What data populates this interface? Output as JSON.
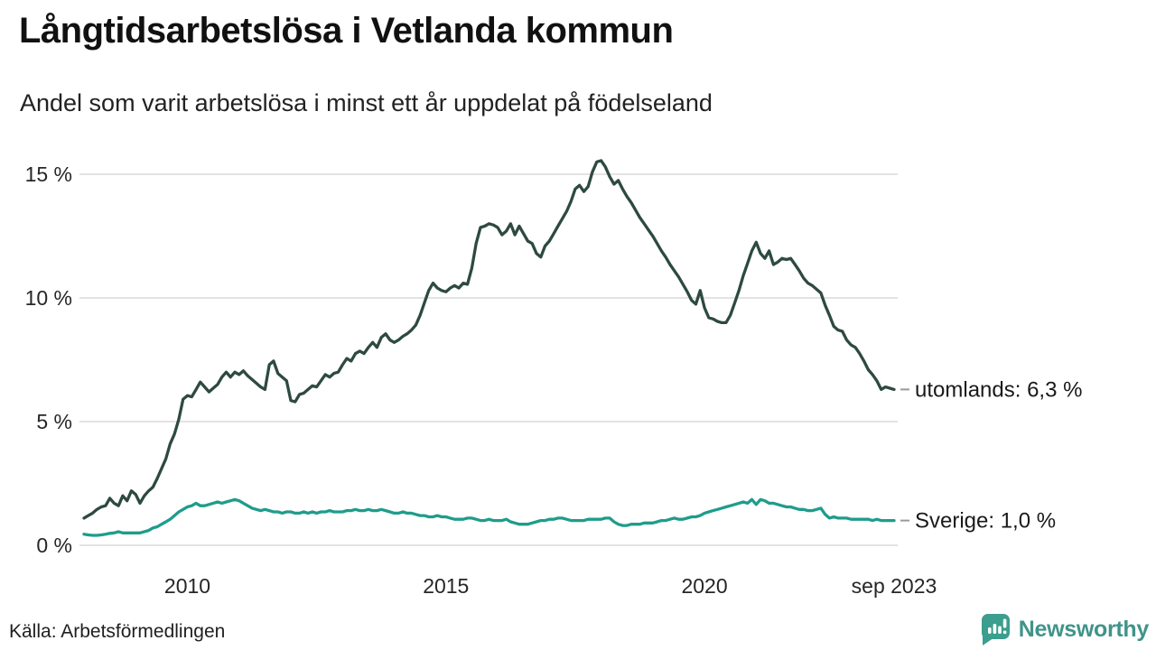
{
  "header": {
    "title": "Långtidsarbetslösa i Vetlanda kommun",
    "subtitle": "Andel som varit arbetslösa i minst ett år uppdelat på födelseland"
  },
  "footer": {
    "source": "Källa: Arbetsförmedlingen",
    "brand": "Newsworthy"
  },
  "colors": {
    "background": "#ffffff",
    "title_text": "#111111",
    "axis_text": "#262626",
    "gridline": "#e3e3e3",
    "end_label_text": "#1a1a1a",
    "end_tick": "#999999",
    "utomlands_line": "#2e4a40",
    "sverige_line": "#1f9c8c",
    "brand_teal": "#3b9e8e"
  },
  "chart_data": {
    "type": "line",
    "title": "Långtidsarbetslösa i Vetlanda kommun",
    "subtitle": "Andel som varit arbetslösa i minst ett år uppdelat på födelseland",
    "frequency": "monthly",
    "x_start": "2008-01",
    "x_end": "2023-09",
    "ylim": [
      0,
      15.5
    ],
    "grid": "horizontal",
    "legend_position": "right-end-labels",
    "y_ticks": [
      {
        "label": "0 %",
        "value": 0
      },
      {
        "label": "5 %",
        "value": 5
      },
      {
        "label": "10 %",
        "value": 10
      },
      {
        "label": "15 %",
        "value": 15
      }
    ],
    "x_ticks": [
      {
        "label": "2010",
        "month_index": 24
      },
      {
        "label": "2015",
        "month_index": 84
      },
      {
        "label": "2020",
        "month_index": 144
      },
      {
        "label": "sep 2023",
        "month_index": 188
      }
    ],
    "series": [
      {
        "name": "utomlands",
        "end_label": "utomlands: 6,3 %",
        "last_value": 6.3,
        "color": "#2e4a40",
        "values": [
          1.1,
          1.2,
          1.3,
          1.45,
          1.55,
          1.6,
          1.9,
          1.7,
          1.6,
          2.0,
          1.8,
          2.2,
          2.05,
          1.7,
          2.0,
          2.2,
          2.35,
          2.7,
          3.1,
          3.5,
          4.1,
          4.5,
          5.1,
          5.9,
          6.05,
          6.0,
          6.3,
          6.6,
          6.4,
          6.2,
          6.35,
          6.5,
          6.8,
          7.0,
          6.8,
          7.0,
          6.9,
          7.05,
          6.85,
          6.7,
          6.55,
          6.4,
          6.3,
          7.3,
          7.45,
          6.95,
          6.8,
          6.65,
          5.85,
          5.8,
          6.1,
          6.15,
          6.3,
          6.45,
          6.4,
          6.65,
          6.9,
          6.8,
          6.95,
          7.0,
          7.3,
          7.55,
          7.45,
          7.75,
          7.85,
          7.75,
          8.0,
          8.2,
          8.0,
          8.4,
          8.55,
          8.3,
          8.2,
          8.3,
          8.45,
          8.55,
          8.7,
          8.9,
          9.3,
          9.8,
          10.3,
          10.6,
          10.4,
          10.3,
          10.25,
          10.4,
          10.5,
          10.4,
          10.6,
          10.55,
          11.2,
          12.2,
          12.85,
          12.9,
          13.0,
          12.95,
          12.85,
          12.55,
          12.7,
          13.0,
          12.55,
          12.9,
          12.6,
          12.3,
          12.2,
          11.8,
          11.65,
          12.1,
          12.3,
          12.6,
          12.9,
          13.2,
          13.5,
          13.9,
          14.4,
          14.55,
          14.3,
          14.5,
          15.1,
          15.5,
          15.55,
          15.3,
          14.9,
          14.6,
          14.75,
          14.4,
          14.1,
          13.85,
          13.55,
          13.25,
          13.0,
          12.75,
          12.5,
          12.2,
          11.9,
          11.65,
          11.35,
          11.1,
          10.85,
          10.55,
          10.25,
          9.9,
          9.75,
          10.3,
          9.6,
          9.2,
          9.15,
          9.05,
          9.0,
          9.0,
          9.3,
          9.8,
          10.3,
          10.9,
          11.4,
          11.9,
          12.25,
          11.8,
          11.6,
          11.9,
          11.35,
          11.45,
          11.6,
          11.55,
          11.6,
          11.35,
          11.1,
          10.8,
          10.6,
          10.5,
          10.35,
          10.2,
          9.7,
          9.3,
          8.85,
          8.7,
          8.65,
          8.3,
          8.1,
          8.0,
          7.75,
          7.45,
          7.1,
          6.9,
          6.65,
          6.3,
          6.4,
          6.35,
          6.3
        ]
      },
      {
        "name": "Sverige",
        "end_label": "Sverige: 1,0 %",
        "last_value": 1.0,
        "color": "#1f9c8c",
        "values": [
          0.45,
          0.42,
          0.4,
          0.4,
          0.42,
          0.45,
          0.48,
          0.5,
          0.55,
          0.5,
          0.5,
          0.5,
          0.5,
          0.5,
          0.55,
          0.6,
          0.7,
          0.75,
          0.85,
          0.95,
          1.05,
          1.2,
          1.35,
          1.45,
          1.55,
          1.6,
          1.7,
          1.6,
          1.6,
          1.65,
          1.7,
          1.75,
          1.7,
          1.75,
          1.8,
          1.85,
          1.8,
          1.7,
          1.6,
          1.5,
          1.45,
          1.4,
          1.45,
          1.4,
          1.35,
          1.35,
          1.3,
          1.35,
          1.35,
          1.3,
          1.3,
          1.35,
          1.3,
          1.35,
          1.3,
          1.35,
          1.35,
          1.4,
          1.35,
          1.35,
          1.35,
          1.4,
          1.4,
          1.45,
          1.4,
          1.4,
          1.45,
          1.4,
          1.4,
          1.45,
          1.4,
          1.35,
          1.3,
          1.3,
          1.35,
          1.3,
          1.3,
          1.25,
          1.2,
          1.2,
          1.15,
          1.15,
          1.2,
          1.15,
          1.15,
          1.1,
          1.05,
          1.05,
          1.05,
          1.1,
          1.1,
          1.05,
          1.0,
          1.0,
          1.05,
          1.0,
          1.0,
          1.0,
          1.05,
          0.95,
          0.9,
          0.85,
          0.85,
          0.85,
          0.9,
          0.95,
          1.0,
          1.0,
          1.05,
          1.05,
          1.1,
          1.1,
          1.05,
          1.0,
          1.0,
          1.0,
          1.0,
          1.05,
          1.05,
          1.05,
          1.05,
          1.1,
          1.1,
          0.95,
          0.85,
          0.8,
          0.8,
          0.85,
          0.85,
          0.85,
          0.9,
          0.9,
          0.9,
          0.95,
          1.0,
          1.0,
          1.05,
          1.1,
          1.05,
          1.05,
          1.1,
          1.15,
          1.15,
          1.2,
          1.3,
          1.35,
          1.4,
          1.45,
          1.5,
          1.55,
          1.6,
          1.65,
          1.7,
          1.75,
          1.7,
          1.85,
          1.65,
          1.85,
          1.8,
          1.7,
          1.7,
          1.65,
          1.6,
          1.55,
          1.55,
          1.5,
          1.45,
          1.45,
          1.4,
          1.4,
          1.45,
          1.5,
          1.25,
          1.1,
          1.15,
          1.1,
          1.1,
          1.1,
          1.05,
          1.05,
          1.05,
          1.05,
          1.05,
          1.0,
          1.05,
          1.0,
          1.0,
          1.0,
          1.0
        ]
      }
    ]
  }
}
